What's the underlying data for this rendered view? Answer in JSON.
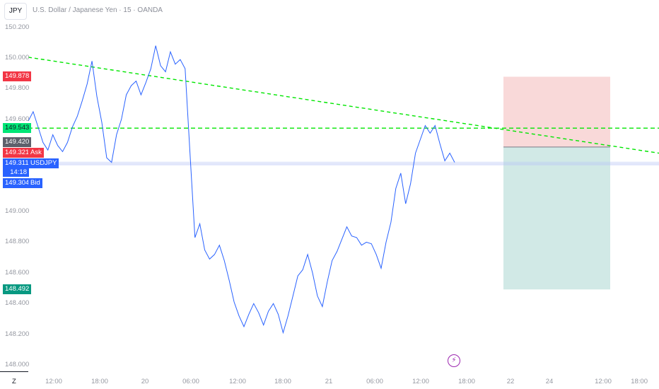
{
  "symbol_label": "JPY",
  "title": "U.S. Dollar / Japanese Yen · 15 · OANDA",
  "colors": {
    "price_line": "#2962ff",
    "trendline": "#00e600",
    "stop_zone": "#f8d2d2",
    "target_zone": "#cfe8e5",
    "tag_red": "#f23645",
    "tag_green": "#00e676",
    "tag_gray": "#5d606b",
    "tag_blue": "#2962ff",
    "tag_teal": "#089981"
  },
  "price_axis_ticks": [
    "150.200",
    "150.000",
    "149.800",
    "149.600",
    "149.000",
    "148.800",
    "148.600",
    "148.400",
    "148.200",
    "148.000"
  ],
  "time_axis": {
    "timezone_label": "Z",
    "ticks": [
      "12:00",
      "18:00",
      "20",
      "06:00",
      "12:00",
      "18:00",
      "21",
      "06:00",
      "12:00",
      "18:00",
      "22",
      "24",
      "12:00",
      "18:00"
    ]
  },
  "price_tags": {
    "stop_price": "149.878",
    "green_line_price": "149.543",
    "gray_price": "149.420",
    "ask_price": "149.321",
    "ask_label": "Ask",
    "last_price": "149.311",
    "symbol": "USDJPY",
    "countdown": "14:18",
    "bid_price": "149.304",
    "bid_label": "Bid",
    "target_price": "148.492"
  },
  "position_tool": {
    "entry": 149.42,
    "stop": 149.878,
    "target": 148.492
  },
  "chart_data": {
    "type": "line",
    "title": "U.S. Dollar / Japanese Yen · 15 · OANDA",
    "xlabel": "",
    "ylabel": "",
    "x_ticks": [
      "12:00",
      "18:00",
      "20",
      "06:00",
      "12:00",
      "18:00",
      "21",
      "06:00",
      "12:00",
      "18:00",
      "22",
      "24",
      "12:00",
      "18:00"
    ],
    "ylim": [
      148.0,
      150.2
    ],
    "series": [
      {
        "name": "USDJPY",
        "values": [
          149.59,
          149.65,
          149.55,
          149.45,
          149.4,
          149.5,
          149.43,
          149.39,
          149.45,
          149.55,
          149.62,
          149.72,
          149.83,
          149.98,
          149.75,
          149.58,
          149.35,
          149.32,
          149.5,
          149.6,
          149.76,
          149.82,
          149.85,
          149.76,
          149.84,
          149.93,
          150.08,
          149.95,
          149.91,
          150.04,
          149.96,
          149.99,
          149.93,
          149.38,
          148.83,
          148.92,
          148.75,
          148.69,
          148.72,
          148.78,
          148.68,
          148.55,
          148.41,
          148.32,
          148.25,
          148.33,
          148.4,
          148.34,
          148.26,
          148.35,
          148.4,
          148.33,
          148.21,
          148.32,
          148.45,
          148.58,
          148.62,
          148.72,
          148.6,
          148.45,
          148.38,
          148.54,
          148.68,
          148.74,
          148.82,
          148.9,
          148.84,
          148.83,
          148.78,
          148.8,
          148.79,
          148.72,
          148.63,
          148.8,
          148.93,
          149.15,
          149.25,
          149.05,
          149.18,
          149.38,
          149.47,
          149.56,
          149.51,
          149.56,
          149.44,
          149.33,
          149.38,
          149.32
        ]
      }
    ],
    "trendlines": [
      {
        "from": {
          "x": "start",
          "y": 150.005
        },
        "to": {
          "x": "end",
          "y": 149.38
        }
      },
      {
        "from": {
          "x": "start",
          "y": 149.543
        },
        "to": {
          "x": "end",
          "y": 149.543
        }
      }
    ],
    "annotations": [
      "149.878",
      "149.543",
      "149.420",
      "149.321",
      "149.311",
      "149.304",
      "148.492"
    ],
    "grid": false,
    "legend": "none"
  }
}
